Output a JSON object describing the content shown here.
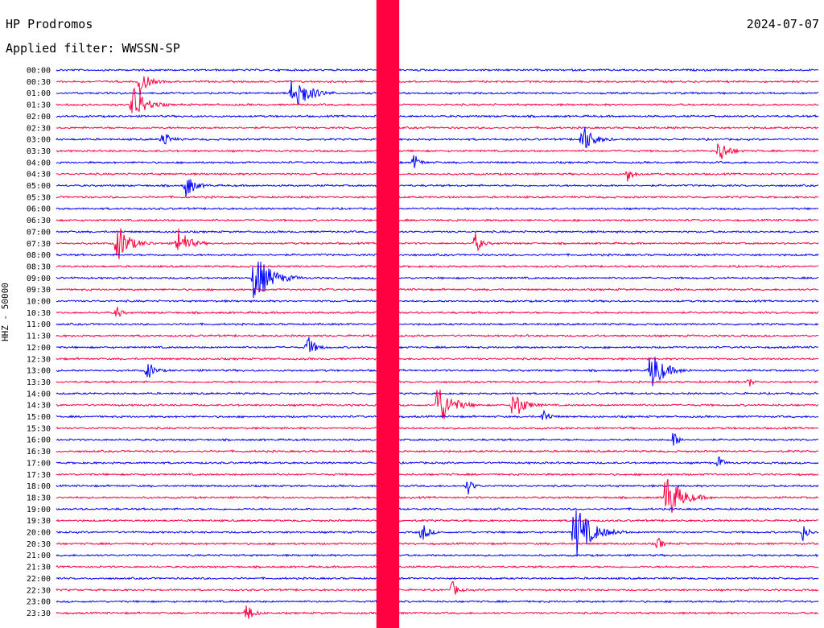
{
  "header": {
    "station": "HP Prodromos",
    "date": "2024-07-07",
    "filter": "Applied filter: WWSSN-SP"
  },
  "chart_data": {
    "type": "line",
    "title": "HP Prodromos",
    "ylabel": "HHZ - 50000",
    "trace_colors": [
      "#0000ff",
      "#ff0040"
    ],
    "row_times": [
      "00:00",
      "00:30",
      "01:00",
      "01:30",
      "02:00",
      "02:30",
      "03:00",
      "03:30",
      "04:00",
      "04:30",
      "05:00",
      "05:30",
      "06:00",
      "06:30",
      "07:00",
      "07:30",
      "08:00",
      "08:30",
      "09:00",
      "09:30",
      "10:00",
      "10:30",
      "11:00",
      "11:30",
      "12:00",
      "12:30",
      "13:00",
      "13:30",
      "14:00",
      "14:30",
      "15:00",
      "15:30",
      "16:00",
      "16:30",
      "17:00",
      "17:30",
      "18:00",
      "18:30",
      "19:00",
      "19:30",
      "20:00",
      "20:30",
      "21:00",
      "21:30",
      "22:00",
      "22:30",
      "23:00",
      "23:30"
    ],
    "events": [
      {
        "row": 1,
        "x": 0.11,
        "amp": 0.8
      },
      {
        "row": 2,
        "x": 0.31,
        "amp": 1.4
      },
      {
        "row": 3,
        "x": 0.1,
        "amp": 1.2
      },
      {
        "row": 6,
        "x": 0.14,
        "amp": 0.6
      },
      {
        "row": 6,
        "x": 0.69,
        "amp": 1.0
      },
      {
        "row": 7,
        "x": 0.87,
        "amp": 0.8
      },
      {
        "row": 8,
        "x": 0.47,
        "amp": 0.5
      },
      {
        "row": 9,
        "x": 0.75,
        "amp": 0.5
      },
      {
        "row": 10,
        "x": 0.17,
        "amp": 0.8
      },
      {
        "row": 15,
        "x": 0.08,
        "amp": 1.2
      },
      {
        "row": 15,
        "x": 0.16,
        "amp": 1.0
      },
      {
        "row": 15,
        "x": 0.55,
        "amp": 0.6
      },
      {
        "row": 18,
        "x": 0.26,
        "amp": 1.6
      },
      {
        "row": 21,
        "x": 0.08,
        "amp": 0.4
      },
      {
        "row": 24,
        "x": 0.33,
        "amp": 0.7
      },
      {
        "row": 26,
        "x": 0.12,
        "amp": 0.6
      },
      {
        "row": 26,
        "x": 0.78,
        "amp": 1.3
      },
      {
        "row": 27,
        "x": 0.91,
        "amp": 0.3
      },
      {
        "row": 29,
        "x": 0.5,
        "amp": 1.4
      },
      {
        "row": 29,
        "x": 0.6,
        "amp": 1.0
      },
      {
        "row": 30,
        "x": 0.64,
        "amp": 0.5
      },
      {
        "row": 32,
        "x": 0.81,
        "amp": 0.5
      },
      {
        "row": 34,
        "x": 0.87,
        "amp": 0.4
      },
      {
        "row": 36,
        "x": 0.54,
        "amp": 0.5
      },
      {
        "row": 37,
        "x": 0.8,
        "amp": 1.5
      },
      {
        "row": 40,
        "x": 0.68,
        "amp": 1.7
      },
      {
        "row": 40,
        "x": 0.48,
        "amp": 0.6
      },
      {
        "row": 40,
        "x": 0.98,
        "amp": 0.5
      },
      {
        "row": 41,
        "x": 0.79,
        "amp": 0.4
      },
      {
        "row": 45,
        "x": 0.52,
        "amp": 0.5
      },
      {
        "row": 47,
        "x": 0.25,
        "amp": 0.6
      }
    ],
    "saturated_band": {
      "x_start": 0.0,
      "x_end": 0.03,
      "start_row": 0,
      "end_row": 47,
      "segment": 0.42
    },
    "grid": false
  }
}
